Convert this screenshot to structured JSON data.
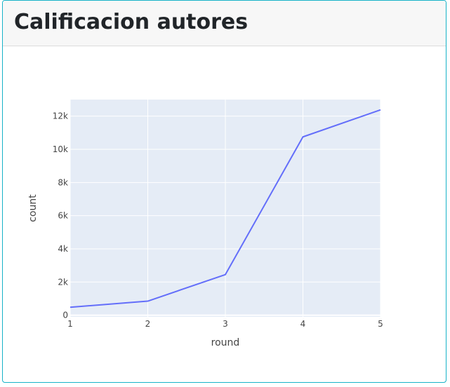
{
  "card": {
    "title": "Calificacion autores"
  },
  "colors": {
    "card_border": "#17b3c8",
    "plot_background": "#e5ecf6",
    "line": "#636efa",
    "grid": "#ffffff"
  },
  "chart_data": {
    "type": "line",
    "xlabel": "round",
    "ylabel": "count",
    "x": [
      1,
      2,
      3,
      4,
      5
    ],
    "series": [
      {
        "values": [
          480,
          850,
          2450,
          10750,
          12380
        ]
      }
    ],
    "xlim": [
      1,
      5
    ],
    "ylim": [
      -100,
      13000
    ],
    "x_ticks": [
      1,
      2,
      3,
      4,
      5
    ],
    "x_tick_labels": [
      "1",
      "2",
      "3",
      "4",
      "5"
    ],
    "y_ticks": [
      0,
      2000,
      4000,
      6000,
      8000,
      10000,
      12000
    ],
    "y_tick_labels": [
      "0",
      "2k",
      "4k",
      "6k",
      "8k",
      "10k",
      "12k"
    ],
    "grid": true
  }
}
